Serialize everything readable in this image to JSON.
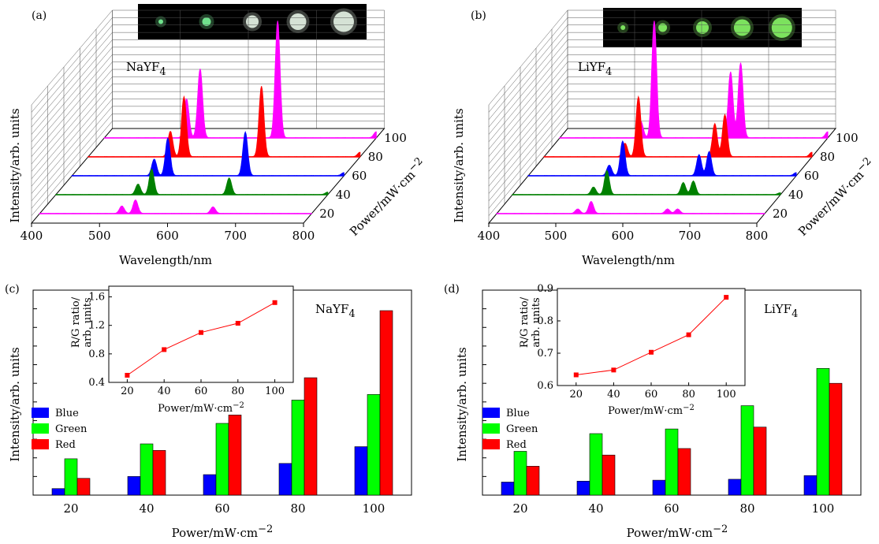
{
  "chart_data": [
    {
      "panel": "(a)",
      "type": "area",
      "material": "NaYF",
      "material_sub": "4",
      "xlabel": "Wavelength/nm",
      "ylabel": "Intensity/arb. units",
      "zlabel_main": "Power/mW·cm",
      "zlabel_exp": "−2",
      "xlim": [
        400,
        800
      ],
      "x_ticks": [
        "400",
        "500",
        "600",
        "700",
        "800"
      ],
      "power_ticks": [
        "20",
        "40",
        "60",
        "80",
        "100"
      ],
      "series": [
        {
          "power": 20,
          "color": "#ff00ff",
          "peaks": [
            [
              521,
              0.25
            ],
            [
              541,
              0.45
            ],
            [
              655,
              0.22
            ]
          ]
        },
        {
          "power": 40,
          "color": "#008000",
          "peaks": [
            [
              521,
              0.35
            ],
            [
              541,
              0.85
            ],
            [
              655,
              0.55
            ],
            [
              800,
              0.08
            ]
          ]
        },
        {
          "power": 60,
          "color": "#0000ff",
          "peaks": [
            [
              521,
              0.55
            ],
            [
              541,
              1.25
            ],
            [
              655,
              1.45
            ],
            [
              800,
              0.1
            ]
          ]
        },
        {
          "power": 80,
          "color": "#ff0000",
          "peaks": [
            [
              521,
              0.85
            ],
            [
              541,
              2.0
            ],
            [
              655,
              2.35
            ],
            [
              800,
              0.15
            ]
          ]
        },
        {
          "power": 100,
          "color": "#ff00ff",
          "peaks": [
            [
              521,
              1.3
            ],
            [
              541,
              2.3
            ],
            [
              655,
              3.9
            ],
            [
              800,
              0.2
            ]
          ]
        }
      ],
      "inset_images": 5
    },
    {
      "panel": "(b)",
      "type": "area",
      "material": "LiYF",
      "material_sub": "4",
      "xlabel": "Wavelength/nm",
      "ylabel": "Intensity/arb. units",
      "zlabel_main": "Power/mW·cm",
      "zlabel_exp": "−2",
      "xlim": [
        400,
        800
      ],
      "x_ticks": [
        "400",
        "500",
        "600",
        "700",
        "800"
      ],
      "power_ticks": [
        "20",
        "40",
        "60",
        "80",
        "100"
      ],
      "series": [
        {
          "power": 20,
          "color": "#ff00ff",
          "peaks": [
            [
              521,
              0.15
            ],
            [
              541,
              0.4
            ],
            [
              655,
              0.15
            ],
            [
              670,
              0.15
            ]
          ]
        },
        {
          "power": 40,
          "color": "#008000",
          "peaks": [
            [
              521,
              0.25
            ],
            [
              541,
              0.8
            ],
            [
              655,
              0.4
            ],
            [
              670,
              0.45
            ],
            [
              800,
              0.06
            ]
          ]
        },
        {
          "power": 60,
          "color": "#0000ff",
          "peaks": [
            [
              521,
              0.35
            ],
            [
              541,
              1.15
            ],
            [
              655,
              0.7
            ],
            [
              670,
              0.8
            ],
            [
              800,
              0.1
            ]
          ]
        },
        {
          "power": 80,
          "color": "#ff0000",
          "peaks": [
            [
              521,
              0.45
            ],
            [
              541,
              2.0
            ],
            [
              655,
              1.1
            ],
            [
              670,
              1.4
            ],
            [
              800,
              0.15
            ]
          ]
        },
        {
          "power": 100,
          "color": "#ff00ff",
          "peaks": [
            [
              521,
              0.55
            ],
            [
              541,
              3.9
            ],
            [
              655,
              2.2
            ],
            [
              670,
              2.5
            ],
            [
              800,
              0.2
            ]
          ]
        }
      ],
      "inset_images": 5
    },
    {
      "panel": "(c)",
      "type": "bar",
      "material": "NaYF",
      "material_sub": "4",
      "xlabel_main": "Power/mW·cm",
      "xlabel_exp": "−2",
      "ylabel": "Intensity/arb. units",
      "categories": [
        "20",
        "40",
        "60",
        "80",
        "100"
      ],
      "ylim": [
        0,
        11
      ],
      "y_minor_count": 11,
      "series": [
        {
          "name": "Blue",
          "color": "#0000ff",
          "values": [
            0.35,
            1.0,
            1.1,
            1.7,
            2.6
          ]
        },
        {
          "name": "Green",
          "color": "#00ff00",
          "values": [
            1.95,
            2.75,
            3.85,
            5.1,
            5.4
          ]
        },
        {
          "name": "Red",
          "color": "#ff0000",
          "values": [
            0.9,
            2.4,
            4.3,
            6.3,
            9.9
          ]
        }
      ],
      "inset": {
        "type": "line",
        "ylabel_line1": "R/G ratio/",
        "ylabel_line2": "arb. units",
        "xlabel_main": "Power/mW·cm",
        "xlabel_exp": "−2",
        "x": [
          20,
          40,
          60,
          80,
          100
        ],
        "y": [
          0.5,
          0.86,
          1.1,
          1.23,
          1.52
        ],
        "xlim": [
          10,
          110
        ],
        "ylim": [
          0.4,
          1.75
        ],
        "x_ticks": [
          20,
          40,
          60,
          80,
          100
        ],
        "y_ticks": [
          0.4,
          0.8,
          1.2,
          1.6
        ],
        "y_tick_labels": [
          "0.4",
          "0.8",
          "1.2",
          "1.6"
        ],
        "color": "#ff0000"
      }
    },
    {
      "panel": "(d)",
      "type": "bar",
      "material": "LiYF",
      "material_sub": "4",
      "xlabel_main": "Power/mW·cm",
      "xlabel_exp": "−2",
      "ylabel": "Intensity/arb. units",
      "categories": [
        "20",
        "40",
        "60",
        "80",
        "100"
      ],
      "ylim": [
        0,
        11
      ],
      "y_minor_count": 11,
      "series": [
        {
          "name": "Blue",
          "color": "#0000ff",
          "values": [
            0.7,
            0.75,
            0.8,
            0.85,
            1.05
          ]
        },
        {
          "name": "Green",
          "color": "#00ff00",
          "values": [
            2.35,
            3.3,
            3.55,
            4.8,
            6.8
          ]
        },
        {
          "name": "Red",
          "color": "#ff0000",
          "values": [
            1.55,
            2.15,
            2.5,
            3.65,
            6.0
          ]
        }
      ],
      "inset": {
        "type": "line",
        "ylabel_line1": "R/G ratio/",
        "ylabel_line2": "arb. units",
        "xlabel_main": "Power/mW·cm",
        "xlabel_exp": "−2",
        "x": [
          20,
          40,
          60,
          80,
          100
        ],
        "y": [
          0.633,
          0.648,
          0.703,
          0.757,
          0.873
        ],
        "xlim": [
          10,
          110
        ],
        "ylim": [
          0.6,
          0.9
        ],
        "x_ticks": [
          20,
          40,
          60,
          80,
          100
        ],
        "y_ticks": [
          0.6,
          0.7,
          0.8,
          0.9
        ],
        "y_tick_labels": [
          "0.6",
          "0.7",
          "0.8",
          "0.9"
        ],
        "color": "#ff0000"
      }
    }
  ]
}
